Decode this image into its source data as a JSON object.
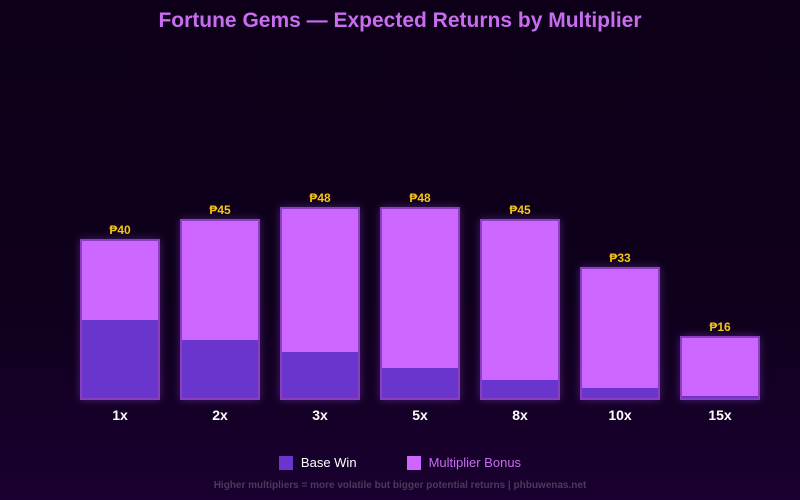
{
  "chart_data": {
    "type": "bar",
    "stacked": true,
    "title": "Fortune Gems — Expected Returns by Multiplier",
    "categories": [
      "1x",
      "2x",
      "3x",
      "5x",
      "8x",
      "10x",
      "15x"
    ],
    "series": [
      {
        "name": "Base Win",
        "color": "#6a35cc",
        "values": [
          20,
          15,
          12,
          8,
          5,
          3,
          1
        ]
      },
      {
        "name": "Multiplier Bonus",
        "color": "#cc66ff",
        "values": [
          20,
          30,
          36,
          40,
          40,
          30,
          15
        ]
      }
    ],
    "totals": [
      40,
      45,
      48,
      48,
      45,
      33,
      16
    ],
    "total_labels": [
      "₱40",
      "₱45",
      "₱48",
      "₱48",
      "₱45",
      "₱33",
      "₱16"
    ],
    "xlabel": "",
    "ylabel": "",
    "ylim": [
      0,
      48
    ],
    "grid": false,
    "legend_position": "bottom"
  },
  "title": "Fortune Gems — Expected Returns by Multiplier",
  "legend": {
    "base": "Base Win",
    "bonus": "Multiplier Bonus"
  },
  "footer": "Higher multipliers = more volatile but bigger potential returns | phbuwenas.net",
  "colors": {
    "base": "#6a35cc",
    "bonus": "#cc66ff",
    "label": "#f5c518",
    "title": "#c86cf0"
  }
}
